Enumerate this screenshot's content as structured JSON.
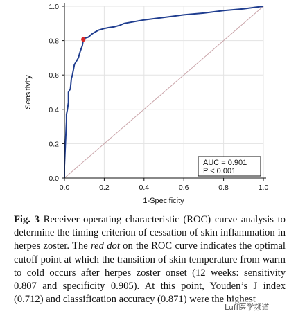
{
  "chart_data": {
    "type": "line",
    "title": "",
    "xlabel": "1-Specificity",
    "ylabel": "Sensitivity",
    "xlim": [
      0,
      1
    ],
    "ylim": [
      0,
      1
    ],
    "xticks": [
      "0.0",
      "0.2",
      "0.4",
      "0.6",
      "0.8",
      "1.0"
    ],
    "yticks": [
      "0.0",
      "0.2",
      "0.4",
      "0.6",
      "0.8",
      "1.0"
    ],
    "grid": true,
    "series": [
      {
        "name": "",
        "color": "#1f3d8f",
        "x": [
          0.0,
          0.0,
          0.005,
          0.01,
          0.01,
          0.015,
          0.02,
          0.02,
          0.03,
          0.035,
          0.04,
          0.045,
          0.05,
          0.06,
          0.07,
          0.075,
          0.08,
          0.09,
          0.095,
          0.105,
          0.12,
          0.14,
          0.17,
          0.2,
          0.22,
          0.25,
          0.28,
          0.3,
          0.35,
          0.4,
          0.5,
          0.6,
          0.7,
          0.8,
          0.9,
          1.0
        ],
        "y": [
          0.0,
          0.07,
          0.2,
          0.33,
          0.37,
          0.4,
          0.44,
          0.5,
          0.52,
          0.58,
          0.6,
          0.63,
          0.66,
          0.68,
          0.7,
          0.72,
          0.74,
          0.77,
          0.807,
          0.815,
          0.82,
          0.84,
          0.86,
          0.87,
          0.875,
          0.88,
          0.89,
          0.9,
          0.91,
          0.92,
          0.935,
          0.95,
          0.96,
          0.975,
          0.985,
          1.0
        ]
      }
    ],
    "reference_line": {
      "x": [
        0,
        1
      ],
      "y": [
        0,
        1
      ],
      "color": "#c9a3a8"
    },
    "cutoff_point": {
      "x": 0.095,
      "y": 0.807,
      "color": "#d62828"
    },
    "legend": {
      "auc_text": "AUC = 0.901",
      "p_text": "P < 0.001",
      "placement": "bottom-right"
    }
  },
  "caption": {
    "fig_label": "Fig. 3",
    "part1": " Receiver operating characteristic (ROC) curve analysis to determine the timing criterion of cessation of skin inflammation in herpes zoster. The ",
    "red_dot": "red dot",
    "part2": " on the ROC curve indicates the optimal cutoff point at which the transition of skin temperature from warm to cold occurs after herpes zoster onset (12 weeks: sensitivity 0.807 and specificity 0.905). At this point, Youden’s J index (0.712) and classification accuracy (0.871) were the highest"
  },
  "watermark": {
    "text": "Luff医学频道"
  }
}
